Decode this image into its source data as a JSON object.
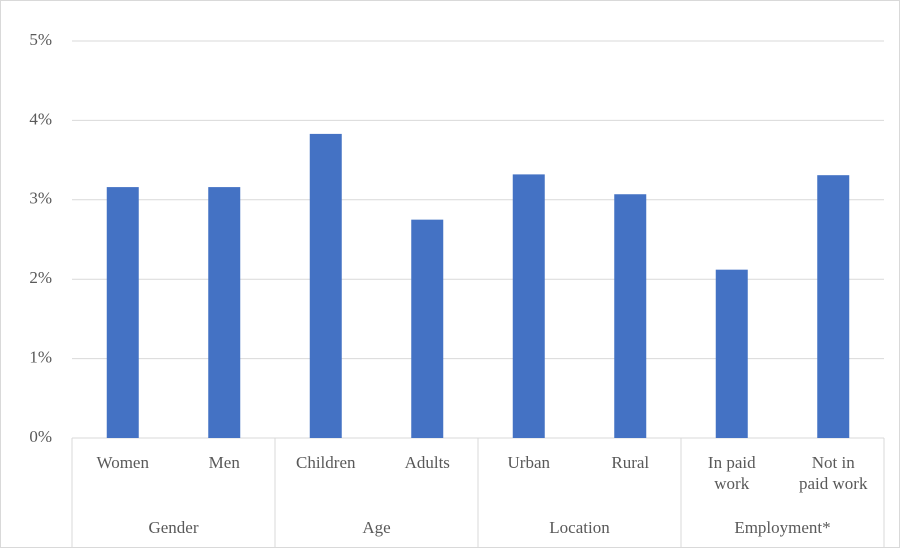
{
  "chart_data": {
    "type": "bar",
    "categories": [
      "Women",
      "Men",
      "Children",
      "Adults",
      "Urban",
      "Rural",
      "In paid work",
      "Not in paid work"
    ],
    "groups": [
      "Gender",
      "Age",
      "Location",
      "Employment*"
    ],
    "values": [
      3.16,
      3.16,
      3.83,
      2.75,
      3.32,
      3.07,
      2.12,
      3.31
    ],
    "color": "#4472c4",
    "ylim": [
      0,
      5
    ],
    "yticks": [
      {
        "value": 0,
        "label": "0%"
      },
      {
        "value": 1,
        "label": "1%"
      },
      {
        "value": 2,
        "label": "2%"
      },
      {
        "value": 3,
        "label": "3%"
      },
      {
        "value": 4,
        "label": "4%"
      },
      {
        "value": 5,
        "label": "5%"
      }
    ],
    "grid": true
  }
}
